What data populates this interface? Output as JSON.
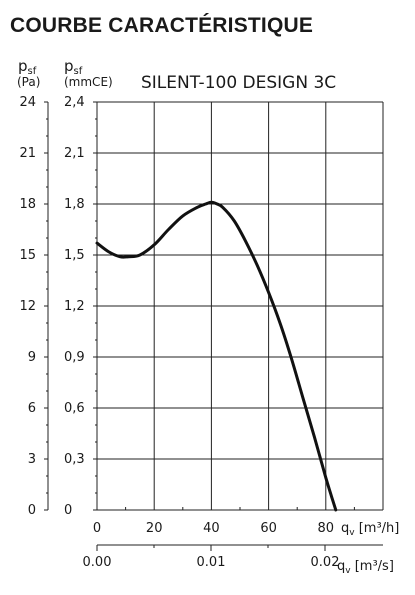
{
  "title": "COURBE CARACTÉRISTIQUE",
  "chart_data": {
    "type": "line",
    "title": "SILENT-100 DESIGN 3C",
    "axis_left_outer": {
      "symbol": "p",
      "subscript": "sf",
      "unit": "(Pa)",
      "ticks": [
        "24",
        "21",
        "18",
        "15",
        "12",
        "9",
        "6",
        "3",
        "0"
      ],
      "range": [
        0,
        24
      ]
    },
    "axis_left_inner": {
      "symbol": "p",
      "subscript": "sf",
      "unit": "(mmCE)",
      "ticks": [
        "2,4",
        "2,1",
        "1,8",
        "1,5",
        "1,2",
        "0,9",
        "0,6",
        "0,3",
        "0"
      ],
      "range": [
        0,
        2.4
      ]
    },
    "axis_bottom_primary": {
      "label": "q",
      "subscript": "v",
      "unit": "[m³/h]",
      "ticks": [
        "0",
        "20",
        "40",
        "60",
        "80"
      ],
      "range": [
        0,
        100
      ]
    },
    "axis_bottom_secondary": {
      "label": "q",
      "subscript": "v",
      "unit": "[m³/s]",
      "ticks": [
        "0.00",
        "0.01",
        "0.02"
      ]
    },
    "grid": true,
    "series": [
      {
        "x": [
          0,
          4,
          8,
          11,
          15,
          20,
          25,
          30,
          35,
          38,
          40,
          42,
          44,
          48,
          52,
          56,
          60,
          64,
          68,
          72,
          76,
          80,
          82,
          83.5
        ],
        "y": [
          1.57,
          1.52,
          1.49,
          1.49,
          1.5,
          1.56,
          1.65,
          1.73,
          1.78,
          1.8,
          1.81,
          1.8,
          1.78,
          1.7,
          1.58,
          1.44,
          1.28,
          1.1,
          0.89,
          0.66,
          0.43,
          0.19,
          0.08,
          0.0
        ]
      }
    ]
  }
}
